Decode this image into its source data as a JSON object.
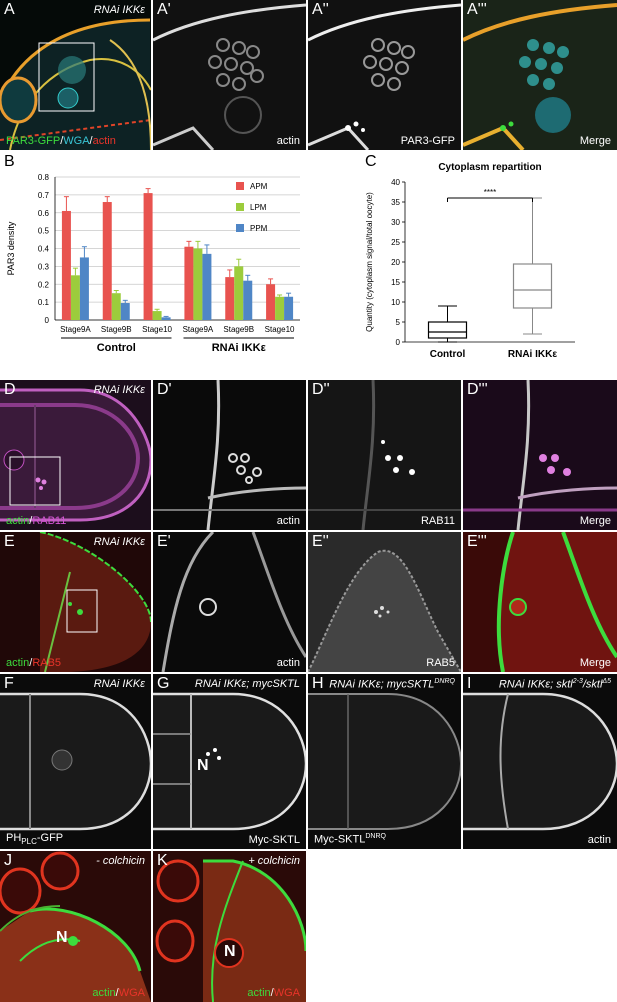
{
  "panels": {
    "A": {
      "label": "A",
      "condition": "RNAi IKKε",
      "stain": [
        "PAR3-GFP",
        "/",
        "WGA",
        "/",
        "actin"
      ]
    },
    "A1": {
      "label": "A'",
      "channel": "actin"
    },
    "A2": {
      "label": "A''",
      "channel": "PAR3-GFP"
    },
    "A3": {
      "label": "A'''",
      "channel": "Merge"
    },
    "B": {
      "label": "B"
    },
    "C": {
      "label": "C"
    },
    "D": {
      "label": "D",
      "condition": "RNAi IKKε",
      "stain": [
        "actin",
        "/",
        "RAB11"
      ]
    },
    "D1": {
      "label": "D'",
      "channel": "actin"
    },
    "D2": {
      "label": "D''",
      "channel": "RAB11"
    },
    "D3": {
      "label": "D'''",
      "channel": "Merge"
    },
    "E": {
      "label": "E",
      "condition": "RNAi IKKε",
      "stain": [
        "actin",
        "/",
        "RAB5"
      ]
    },
    "E1": {
      "label": "E'",
      "channel": "actin"
    },
    "E2": {
      "label": "E''",
      "channel": "RAB5"
    },
    "E3": {
      "label": "E'''",
      "channel": "Merge"
    },
    "F": {
      "label": "F",
      "condition": "RNAi IKKε",
      "channel_main": "PH",
      "channel_sub": "PLC",
      "channel_tail": "-GFP"
    },
    "G": {
      "label": "G",
      "condition": "RNAi IKKε; mycSKTL",
      "channel": "Myc-SKTL",
      "n": "N"
    },
    "H": {
      "label": "H",
      "condition_main": "RNAi IKKε; mycSKTL",
      "condition_sup": "DNRQ",
      "channel_main": "Myc-SKTL",
      "channel_sup": "DNRQ"
    },
    "I": {
      "label": "I",
      "condition_main": "RNAi IKKε; sktl",
      "sup1": "2-3",
      "mid": "/sktl",
      "sup2": "Δ5",
      "channel": "actin"
    },
    "J": {
      "label": "J",
      "condition": "- colchicin",
      "stain": [
        "actin",
        "/",
        "WGA"
      ],
      "n": "N"
    },
    "K": {
      "label": "K",
      "condition": "+ colchicin",
      "stain": [
        "actin",
        "/",
        "WGA"
      ],
      "n": "N"
    }
  },
  "colors": {
    "apm": "#e8534f",
    "lpm": "#9ccc3c",
    "ppm": "#4f86c6",
    "green": "#3ddc3d",
    "magenta": "#d455d4",
    "red": "#e8342a",
    "cyan": "#39c6d6"
  },
  "chart_data": [
    {
      "type": "bar",
      "ylabel": "PAR3 density",
      "ylim": [
        0,
        0.8
      ],
      "yticks": [
        "0",
        "0.1",
        "0.2",
        "0.3",
        "0.4",
        "0.5",
        "0.6",
        "0.7",
        "0.8"
      ],
      "categories": [
        "Stage9A",
        "Stage9B",
        "Stage10",
        "Stage9A",
        "Stage9B",
        "Stage10"
      ],
      "groups": [
        {
          "name": "Control",
          "span": [
            0,
            2
          ]
        },
        {
          "name": "RNAi IKKε",
          "span": [
            3,
            5
          ]
        }
      ],
      "series": [
        {
          "name": "APM",
          "color": "#e8534f",
          "values": [
            0.61,
            0.66,
            0.71,
            0.41,
            0.24,
            0.2
          ],
          "errors": [
            0.08,
            0.03,
            0.025,
            0.03,
            0.04,
            0.03
          ]
        },
        {
          "name": "LPM",
          "color": "#9ccc3c",
          "values": [
            0.25,
            0.15,
            0.05,
            0.4,
            0.3,
            0.13
          ],
          "errors": [
            0.04,
            0.015,
            0.01,
            0.04,
            0.04,
            0.01
          ]
        },
        {
          "name": "PPM",
          "color": "#4f86c6",
          "values": [
            0.35,
            0.095,
            0.015,
            0.37,
            0.22,
            0.13
          ],
          "errors": [
            0.06,
            0.015,
            0.005,
            0.05,
            0.03,
            0.02
          ]
        }
      ],
      "legend": "top-right"
    },
    {
      "type": "box",
      "title": "Cytoplasm repartition",
      "ylabel": "Quantity (cytoplasm signal/total oocyte)",
      "ylim": [
        0,
        40
      ],
      "yticks": [
        "0",
        "5",
        "10",
        "15",
        "20",
        "25",
        "30",
        "35",
        "40"
      ],
      "categories": [
        "Control",
        "RNAi IKKε"
      ],
      "boxes": [
        {
          "min": 0,
          "q1": 1,
          "median": 2.5,
          "q3": 5,
          "max": 9
        },
        {
          "min": 2,
          "q1": 8.5,
          "median": 13,
          "q3": 19.5,
          "max": 36
        }
      ],
      "significance": "****"
    }
  ]
}
